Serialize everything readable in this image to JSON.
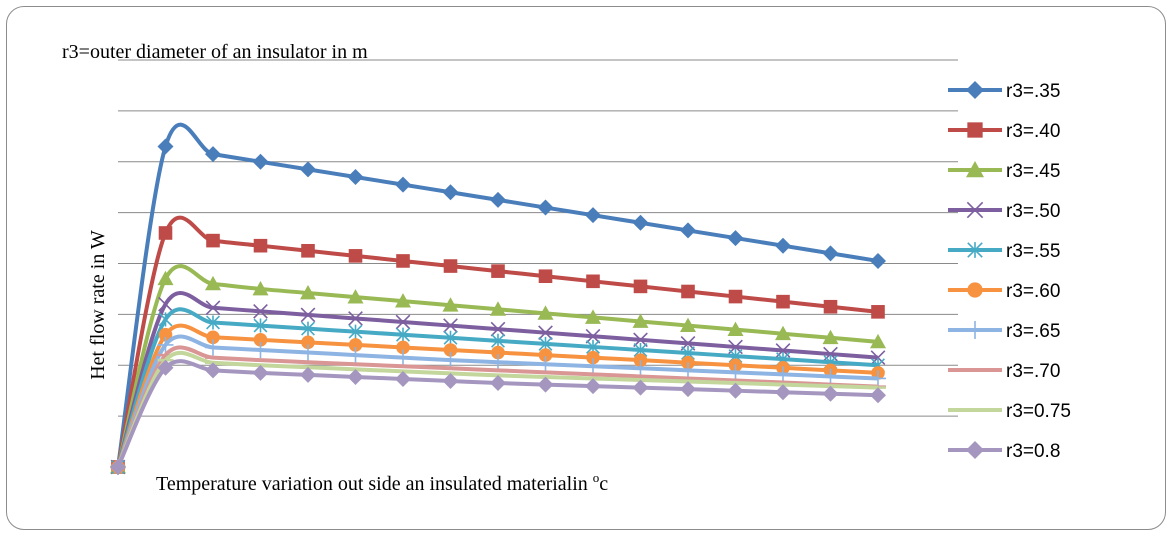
{
  "chart_data": {
    "type": "line",
    "title": "r3=outer diameter of an insulator in m",
    "xlabel": "Temperature variation out side an insulated materialin ",
    "xlabel_unit": "c",
    "xlabel_degree": "o",
    "ylabel": "Het flow rate in W",
    "x": [
      0,
      1,
      2,
      3,
      4,
      5,
      6,
      7,
      8,
      9,
      10,
      11,
      12,
      13,
      14,
      15,
      16
    ],
    "ylim": [
      0,
      8
    ],
    "grid": true,
    "legend_position": "right",
    "series": [
      {
        "name": "r3=.35",
        "color": "#4a7ebb",
        "marker": "diamond",
        "values": [
          0,
          6.3,
          6.15,
          6.0,
          5.85,
          5.7,
          5.55,
          5.4,
          5.25,
          5.1,
          4.95,
          4.8,
          4.65,
          4.5,
          4.35,
          4.2,
          4.05
        ]
      },
      {
        "name": "r3=.40",
        "color": "#be4b48",
        "marker": "square",
        "values": [
          0,
          4.6,
          4.45,
          4.35,
          4.25,
          4.15,
          4.05,
          3.95,
          3.85,
          3.75,
          3.65,
          3.55,
          3.45,
          3.35,
          3.25,
          3.15,
          3.05
        ]
      },
      {
        "name": "r3=.45",
        "color": "#98b954",
        "marker": "triangle",
        "values": [
          0,
          3.7,
          3.6,
          3.5,
          3.42,
          3.34,
          3.26,
          3.18,
          3.1,
          3.02,
          2.94,
          2.86,
          2.78,
          2.7,
          2.62,
          2.54,
          2.46
        ]
      },
      {
        "name": "r3=.50",
        "color": "#7d5fa0",
        "marker": "x",
        "values": [
          0,
          3.2,
          3.13,
          3.06,
          2.99,
          2.92,
          2.85,
          2.78,
          2.71,
          2.64,
          2.57,
          2.5,
          2.43,
          2.36,
          2.29,
          2.22,
          2.15
        ]
      },
      {
        "name": "r3=.55",
        "color": "#46aac5",
        "marker": "star",
        "values": [
          0,
          2.9,
          2.84,
          2.78,
          2.72,
          2.66,
          2.6,
          2.54,
          2.48,
          2.42,
          2.36,
          2.3,
          2.24,
          2.18,
          2.12,
          2.06,
          2.0
        ]
      },
      {
        "name": "r3=.60",
        "color": "#f69240",
        "marker": "circle",
        "values": [
          0,
          2.6,
          2.55,
          2.5,
          2.45,
          2.4,
          2.35,
          2.3,
          2.25,
          2.2,
          2.15,
          2.1,
          2.05,
          2.0,
          1.95,
          1.9,
          1.85
        ]
      },
      {
        "name": "r3=.65",
        "color": "#8eb4e3",
        "marker": "plus",
        "values": [
          0,
          2.4,
          2.35,
          2.3,
          2.25,
          2.2,
          2.15,
          2.1,
          2.06,
          2.02,
          1.98,
          1.94,
          1.9,
          1.86,
          1.82,
          1.78,
          1.74
        ]
      },
      {
        "name": "r3=.70",
        "color": "#d99694",
        "marker": "dash",
        "values": [
          0,
          2.2,
          2.15,
          2.1,
          2.06,
          2.02,
          1.98,
          1.94,
          1.9,
          1.86,
          1.82,
          1.78,
          1.74,
          1.7,
          1.66,
          1.62,
          1.58
        ]
      },
      {
        "name": "r3=0.75",
        "color": "#c3d69b",
        "marker": "dash",
        "values": [
          0,
          2.1,
          2.05,
          2.0,
          1.96,
          1.92,
          1.88,
          1.84,
          1.8,
          1.77,
          1.74,
          1.71,
          1.68,
          1.65,
          1.62,
          1.59,
          1.56
        ]
      },
      {
        "name": "r3=0.8",
        "color": "#a596c0",
        "marker": "diamond",
        "values": [
          0,
          1.95,
          1.9,
          1.85,
          1.81,
          1.77,
          1.73,
          1.69,
          1.65,
          1.62,
          1.59,
          1.56,
          1.53,
          1.5,
          1.47,
          1.44,
          1.41
        ]
      }
    ]
  }
}
